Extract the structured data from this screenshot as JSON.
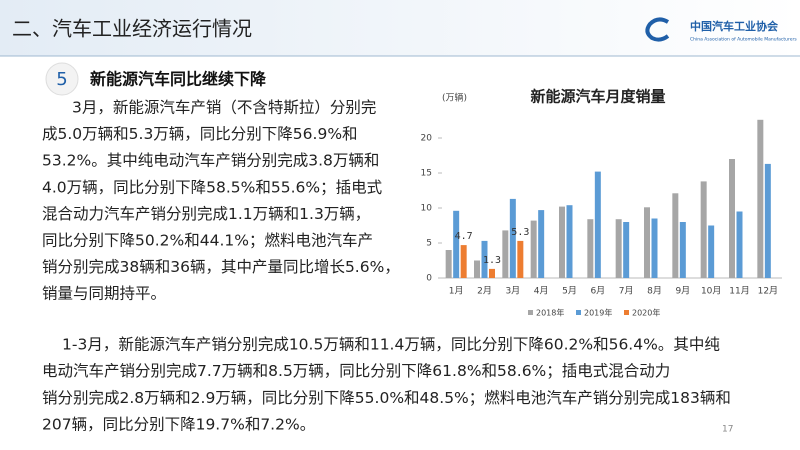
{
  "header": {
    "title": "二、汽车工业经济运行情况",
    "logo": "中国汽车工业协会",
    "logo_en": "China Association of Automobile Manufacturers"
  },
  "section": {
    "number": "5",
    "heading": "新能源汽车同比继续下降"
  },
  "paragraphs": [
    [
      "3月，新能源汽车产销（不含特斯拉）分别完",
      "成5.0万辆和5.3万辆，同比分别下降56.9%和",
      "53.2%。其中纯电动汽车产销分别完成3.8万辆和",
      "4.0万辆，同比分别下降58.5%和55.6%；插电式",
      "混合动力汽车产销分别完成1.1万辆和1.3万辆，",
      "同比分别下降50.2%和44.1%；燃料电池汽车产",
      "销分别完成38辆和36辆，其中产量同比增长5.6%，",
      "销量与同期持平。"
    ],
    [
      "1-3月，新能源汽车产销分别完成10.5万辆和11.4万辆，同比分别下降60.2%和56.4%。其中纯",
      "电动汽车产销分别完成7.7万辆和8.5万辆，同比分别下降61.8%和58.6%；插电式混合动力",
      "销分别完成2.8万辆和2.9万辆，同比分别下降55.0%和48.5%；燃料电池汽车产销分别完成183辆和",
      "207辆，同比分别下降19.7%和7.2%。"
    ]
  ],
  "page_number": "17",
  "chart_data": {
    "type": "bar",
    "title": "新能源汽车月度销量",
    "y_label": "(万辆)",
    "categories": [
      "1月",
      "2月",
      "3月",
      "4月",
      "5月",
      "6月",
      "7月",
      "8月",
      "9月",
      "10月",
      "11月",
      "12月"
    ],
    "series": [
      {
        "name": "2018年",
        "color": "#a6a6a6",
        "values": [
          4.0,
          2.5,
          6.8,
          8.2,
          10.2,
          8.4,
          8.4,
          10.1,
          12.1,
          13.8,
          17.0,
          22.6
        ]
      },
      {
        "name": "2019年",
        "color": "#5b9bd5",
        "values": [
          9.6,
          5.3,
          11.3,
          9.7,
          10.4,
          15.2,
          8.0,
          8.5,
          8.0,
          7.5,
          9.5,
          16.3
        ]
      },
      {
        "name": "2020年",
        "color": "#ed7d31",
        "values": [
          4.7,
          1.3,
          5.3,
          null,
          null,
          null,
          null,
          null,
          null,
          null,
          null,
          null
        ]
      }
    ],
    "labeled_series": 2,
    "ylim": [
      0,
      23
    ],
    "yticks": [
      0,
      5,
      10,
      15,
      20
    ],
    "legend": "bottom"
  }
}
